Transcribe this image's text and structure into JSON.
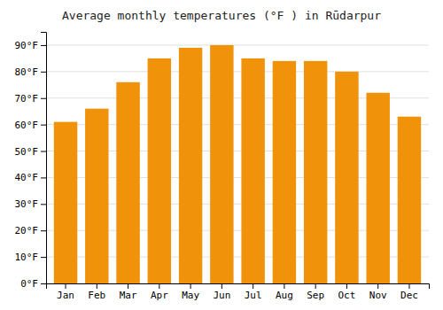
{
  "chart_data": {
    "type": "bar",
    "title": "Average monthly temperatures (°F ) in Rūdarpur",
    "categories": [
      "Jan",
      "Feb",
      "Mar",
      "Apr",
      "May",
      "Jun",
      "Jul",
      "Aug",
      "Sep",
      "Oct",
      "Nov",
      "Dec"
    ],
    "values": [
      61,
      66,
      76,
      85,
      89,
      90,
      85,
      84,
      84,
      80,
      72,
      63
    ],
    "color": "#F0920A",
    "ylim": [
      0,
      95
    ],
    "yticks": [
      {
        "value": 0,
        "label": "0°F"
      },
      {
        "value": 10,
        "label": "10°F"
      },
      {
        "value": 20,
        "label": "20°F"
      },
      {
        "value": 30,
        "label": "30°F"
      },
      {
        "value": 40,
        "label": "40°F"
      },
      {
        "value": 50,
        "label": "50°F"
      },
      {
        "value": 60,
        "label": "60°F"
      },
      {
        "value": 70,
        "label": "70°F"
      },
      {
        "value": 80,
        "label": "80°F"
      },
      {
        "value": 90,
        "label": "90°F"
      }
    ],
    "grid": true
  }
}
